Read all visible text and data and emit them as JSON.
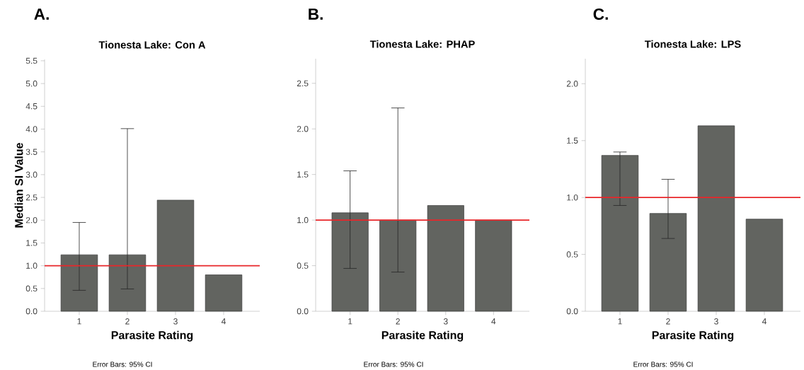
{
  "chart_data": [
    {
      "type": "bar",
      "title": "Tionesta Lake: Con A",
      "xlabel": "Parasite Rating",
      "ylabel": "Median SI Value",
      "categories": [
        "1",
        "2",
        "3",
        "4"
      ],
      "values": [
        1.24,
        1.24,
        2.44,
        0.8
      ],
      "errors": [
        [
          0.46,
          1.95
        ],
        [
          0.49,
          4.01
        ],
        null,
        null
      ],
      "color": "#626460",
      "ylim": [
        0,
        5.53
      ],
      "yticks": [
        {
          "value": 0,
          "label": "0.0"
        },
        {
          "value": 0.5,
          "label": "0.5"
        },
        {
          "value": 1,
          "label": "1.0"
        },
        {
          "value": 1.5,
          "label": "1.5"
        },
        {
          "value": 2,
          "label": "2.0"
        },
        {
          "value": 2.5,
          "label": "2.5"
        },
        {
          "value": 3,
          "label": "3.0"
        },
        {
          "value": 3.5,
          "label": "3.5"
        },
        {
          "value": 4,
          "label": "4.0"
        },
        {
          "value": 4.5,
          "label": "4.5"
        },
        {
          "value": 5,
          "label": "5.0"
        },
        {
          "value": 5.5,
          "label": "5.5"
        }
      ],
      "ref_lines": [
        {
          "axis": "y",
          "value": 1,
          "color": "#e8262a"
        }
      ],
      "annotations": [
        "A.",
        "Error Bars: 95% CI"
      ]
    },
    {
      "type": "bar",
      "title": "Tionesta Lake: PHAP",
      "xlabel": "Parasite Rating",
      "categories": [
        "1",
        "2",
        "3",
        "4"
      ],
      "values": [
        1.08,
        1.0,
        1.16,
        1.0
      ],
      "errors": [
        [
          0.47,
          1.54
        ],
        [
          0.43,
          2.23
        ],
        null,
        null
      ],
      "color": "#626460",
      "ylim": [
        0,
        2.77
      ],
      "yticks": [
        {
          "value": 0,
          "label": "0.0"
        },
        {
          "value": 0.5,
          "label": "0.5"
        },
        {
          "value": 1,
          "label": "1.0"
        },
        {
          "value": 1.5,
          "label": "1.5"
        },
        {
          "value": 2,
          "label": "2.0"
        },
        {
          "value": 2.5,
          "label": "2.5"
        }
      ],
      "ref_lines": [
        {
          "axis": "y",
          "value": 1,
          "color": "#e8262a"
        }
      ],
      "annotations": [
        "B.",
        "Error Bars: 95% CI"
      ]
    },
    {
      "type": "bar",
      "title": "Tionesta Lake: LPS",
      "xlabel": "Parasite Rating",
      "categories": [
        "1",
        "2",
        "3",
        "4"
      ],
      "values": [
        1.37,
        0.86,
        1.63,
        0.81
      ],
      "errors": [
        [
          0.93,
          1.4
        ],
        [
          0.64,
          1.16
        ],
        null,
        null
      ],
      "color": "#626460",
      "ylim": [
        0,
        2.22
      ],
      "yticks": [
        {
          "value": 0,
          "label": "0.0"
        },
        {
          "value": 0.5,
          "label": "0.5"
        },
        {
          "value": 1,
          "label": "1.0"
        },
        {
          "value": 1.5,
          "label": "1.5"
        },
        {
          "value": 2,
          "label": "2.0"
        }
      ],
      "ref_lines": [
        {
          "axis": "y",
          "value": 1,
          "color": "#e8262a"
        }
      ],
      "annotations": [
        "C.",
        "Error Bars: 95% CI"
      ]
    }
  ]
}
